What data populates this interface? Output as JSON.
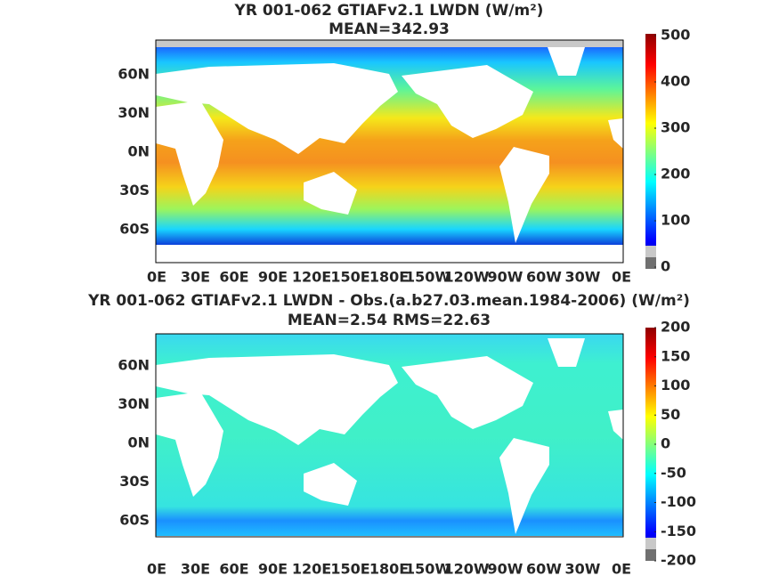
{
  "panels": [
    {
      "title": "YR 001-062 GTIAFv2.1 LWDN (W/m²)",
      "subtitle": "MEAN=342.93",
      "lat_labels": [
        "60N",
        "30N",
        "0N",
        "30S",
        "60S"
      ],
      "lon_labels": [
        "0E",
        "30E",
        "60E",
        "90E",
        "120E",
        "150E",
        "180E",
        "150W",
        "120W",
        "90W",
        "60W",
        "30W",
        "0E"
      ],
      "colorbar": {
        "lim": [
          0,
          500
        ],
        "ticks": [
          0,
          100,
          200,
          300,
          400,
          500
        ]
      }
    },
    {
      "title": "YR 001-062 GTIAFv2.1 LWDN - Obs.(a.b27.03.mean.1984-2006) (W/m²)",
      "subtitle": "MEAN=2.54 RMS=22.63",
      "lat_labels": [
        "60N",
        "30N",
        "0N",
        "30S",
        "60S"
      ],
      "lon_labels": [
        "0E",
        "30E",
        "60E",
        "90E",
        "120E",
        "150E",
        "180E",
        "150W",
        "120W",
        "90W",
        "60W",
        "30W",
        "0E"
      ],
      "colorbar": {
        "lim": [
          -200,
          200
        ],
        "ticks": [
          -200,
          -150,
          -100,
          -50,
          0,
          50,
          100,
          150,
          200
        ]
      }
    }
  ]
}
